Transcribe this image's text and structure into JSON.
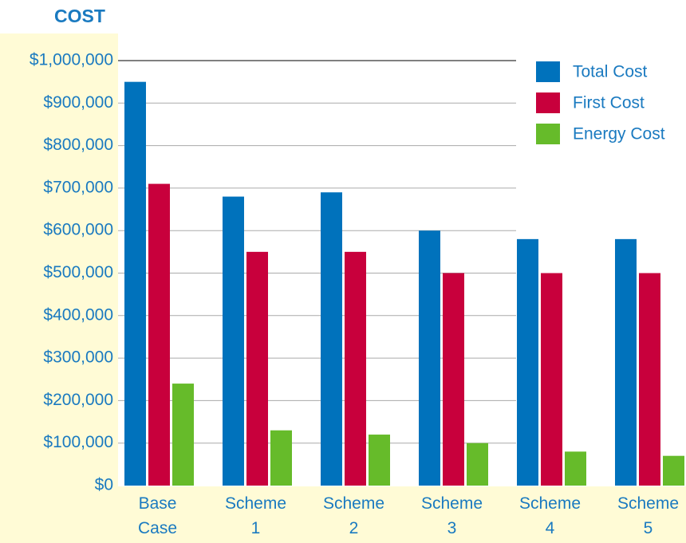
{
  "chart_data": {
    "type": "bar",
    "title": "COST",
    "categories": [
      "Base Case",
      "Scheme 1",
      "Scheme 2",
      "Scheme 3",
      "Scheme 4",
      "Scheme 5"
    ],
    "series": [
      {
        "name": "Total Cost",
        "color": "#0072bc",
        "values": [
          950000,
          680000,
          690000,
          600000,
          580000,
          580000
        ]
      },
      {
        "name": "First Cost",
        "color": "#c8003c",
        "values": [
          710000,
          550000,
          550000,
          500000,
          500000,
          500000
        ]
      },
      {
        "name": "Energy Cost",
        "color": "#66bb2a",
        "values": [
          240000,
          130000,
          120000,
          100000,
          80000,
          70000
        ]
      }
    ],
    "ylim": [
      0,
      1000000
    ],
    "yticks": [
      {
        "value": 0,
        "label": "$0"
      },
      {
        "value": 100000,
        "label": "$100,000"
      },
      {
        "value": 200000,
        "label": "$200,000"
      },
      {
        "value": 300000,
        "label": "$300,000"
      },
      {
        "value": 400000,
        "label": "$400,000"
      },
      {
        "value": 500000,
        "label": "$500,000"
      },
      {
        "value": 600000,
        "label": "$600,000"
      },
      {
        "value": 700000,
        "label": "$700,000"
      },
      {
        "value": 800000,
        "label": "$800,000"
      },
      {
        "value": 900000,
        "label": "$900,000"
      },
      {
        "value": 1000000,
        "label": "$1,000,000"
      }
    ],
    "grid": true,
    "legend": "top-right"
  }
}
